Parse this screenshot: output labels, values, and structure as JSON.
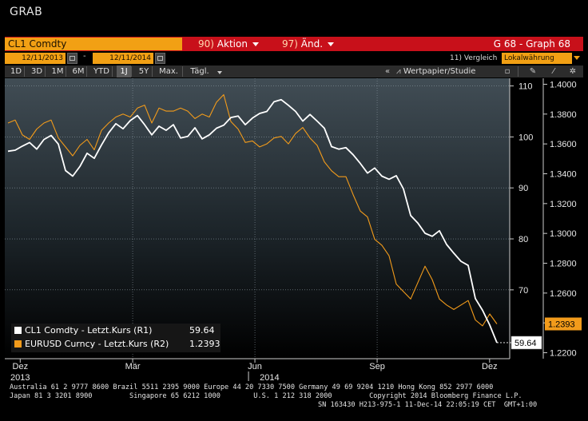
{
  "window_title": "GRAB",
  "header": {
    "ticker": "CL1 Comdty",
    "action_num": "90)",
    "action_label": "Aktion",
    "change_num": "97)",
    "change_label": "Änd.",
    "graph_title": "G 68 - Graph 68"
  },
  "dates": {
    "start": "12/11/2013",
    "separator": "-",
    "end": "12/11/2014",
    "compare_num": "11)",
    "compare_label": "Vergleich",
    "currency_mode": "Lokalwährung"
  },
  "toolbar": {
    "periods": [
      "1D",
      "3D",
      "1M",
      "6M",
      "YTD",
      "1J",
      "5Y",
      "Max."
    ],
    "selected_period": "1J",
    "frequency": "Tägl.",
    "study_label": "Wertpapier/Studie"
  },
  "chart_data": {
    "type": "line",
    "x_labels": [
      "Dez",
      "Mär",
      "Jun",
      "Sep",
      "Dez"
    ],
    "year_labels": [
      "2013",
      "2014"
    ],
    "series": [
      {
        "name": "CL1 Comdty - Letzt.Kurs (R1)",
        "axis": "R1",
        "last_value": "59.64",
        "color": "#ffffff",
        "values": [
          97.2,
          97.4,
          98.2,
          98.9,
          97.6,
          99.5,
          100.3,
          98.6,
          93.4,
          92.3,
          94.2,
          96.8,
          95.8,
          98.4,
          100.8,
          102.6,
          101.6,
          103.2,
          104.2,
          102.4,
          100.4,
          102.1,
          101.3,
          102.4,
          99.8,
          100.1,
          101.8,
          99.6,
          100.4,
          101.7,
          102.3,
          103.8,
          104.1,
          102.4,
          103.7,
          104.6,
          105.0,
          106.9,
          107.3,
          106.2,
          105.0,
          103.1,
          104.4,
          103.1,
          101.7,
          98.1,
          97.6,
          97.9,
          96.5,
          94.8,
          92.9,
          93.9,
          92.3,
          91.7,
          92.4,
          89.8,
          84.6,
          83.1,
          81.1,
          80.5,
          81.6,
          78.9,
          77.2,
          75.6,
          74.8,
          68.3,
          66.0,
          63.1,
          59.64
        ]
      },
      {
        "name": "EURUSD Curncy - Letzt.Kurs (R2)",
        "axis": "R2",
        "last_value": "1.2393",
        "color": "#f29b1b",
        "values": [
          1.374,
          1.376,
          1.366,
          1.363,
          1.37,
          1.374,
          1.376,
          1.364,
          1.358,
          1.352,
          1.359,
          1.363,
          1.356,
          1.369,
          1.374,
          1.378,
          1.38,
          1.378,
          1.384,
          1.386,
          1.374,
          1.384,
          1.382,
          1.382,
          1.384,
          1.382,
          1.377,
          1.38,
          1.378,
          1.388,
          1.393,
          1.375,
          1.37,
          1.361,
          1.362,
          1.358,
          1.36,
          1.364,
          1.365,
          1.36,
          1.367,
          1.371,
          1.364,
          1.359,
          1.348,
          1.342,
          1.338,
          1.338,
          1.326,
          1.315,
          1.311,
          1.296,
          1.292,
          1.285,
          1.266,
          1.261,
          1.256,
          1.267,
          1.278,
          1.269,
          1.256,
          1.252,
          1.249,
          1.252,
          1.255,
          1.242,
          1.238,
          1.246,
          1.2393
        ]
      }
    ],
    "right_axis_1": {
      "ticks": [
        70,
        80,
        90,
        100,
        110
      ],
      "range": [
        56.5,
        111.5
      ]
    },
    "right_axis_2": {
      "ticks": [
        "1.2200",
        "1.2400",
        "1.2600",
        "1.2800",
        "1.3000",
        "1.3200",
        "1.3400",
        "1.3600",
        "1.3800",
        "1.4000"
      ],
      "range": [
        1.216,
        1.404
      ]
    },
    "grid": true,
    "legend_position": "bottom-left"
  },
  "footer": {
    "line1": "Australia 61 2 9777 8600 Brazil 5511 2395 9000 Europe 44 20 7330 7500 Germany 49 69 9204 1210 Hong Kong 852 2977 6000",
    "line2": "Japan 81 3 3201 8900         Singapore 65 6212 1000        U.S. 1 212 318 2000         Copyright 2014 Bloomberg Finance L.P.",
    "line3": "SN 163430 H213-975-1 11-Dec-14 22:05:19 CET  GMT+1:00"
  },
  "colors": {
    "accent": "#f2a014",
    "header_red": "#c8101a",
    "eurusd": "#f29b1b"
  }
}
